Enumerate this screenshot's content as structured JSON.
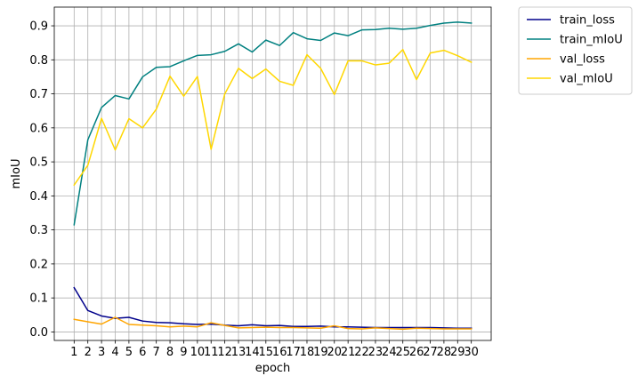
{
  "chart_data": {
    "type": "line",
    "xlabel": "epoch",
    "ylabel": "mIoU",
    "x": [
      1,
      2,
      3,
      4,
      5,
      6,
      7,
      8,
      9,
      10,
      11,
      12,
      13,
      14,
      15,
      16,
      17,
      18,
      19,
      20,
      21,
      22,
      23,
      24,
      25,
      26,
      27,
      28,
      29,
      30
    ],
    "yticks": [
      "0.0",
      "0.1",
      "0.2",
      "0.3",
      "0.4",
      "0.5",
      "0.6",
      "0.7",
      "0.8",
      "0.9"
    ],
    "ylim": [
      -0.025,
      0.955
    ],
    "grid": true,
    "legend_position": "outside-top-right",
    "series": [
      {
        "name": "train_loss",
        "color": "#00008b",
        "values": [
          0.13,
          0.063,
          0.047,
          0.04,
          0.043,
          0.032,
          0.028,
          0.027,
          0.024,
          0.022,
          0.023,
          0.02,
          0.018,
          0.021,
          0.018,
          0.019,
          0.016,
          0.016,
          0.017,
          0.015,
          0.015,
          0.014,
          0.013,
          0.013,
          0.013,
          0.013,
          0.013,
          0.012,
          0.011,
          0.011
        ]
      },
      {
        "name": "train_mIoU",
        "color": "#008080",
        "values": [
          0.315,
          0.565,
          0.66,
          0.695,
          0.685,
          0.75,
          0.778,
          0.78,
          0.797,
          0.813,
          0.815,
          0.825,
          0.847,
          0.823,
          0.858,
          0.842,
          0.88,
          0.862,
          0.857,
          0.879,
          0.871,
          0.888,
          0.889,
          0.893,
          0.89,
          0.893,
          0.901,
          0.908,
          0.911,
          0.908
        ]
      },
      {
        "name": "val_loss",
        "color": "#ffa500",
        "values": [
          0.037,
          0.03,
          0.023,
          0.043,
          0.022,
          0.02,
          0.018,
          0.015,
          0.017,
          0.015,
          0.027,
          0.019,
          0.012,
          0.013,
          0.014,
          0.013,
          0.013,
          0.012,
          0.011,
          0.018,
          0.01,
          0.009,
          0.012,
          0.01,
          0.008,
          0.011,
          0.01,
          0.009,
          0.009,
          0.009
        ]
      },
      {
        "name": "val_mIoU",
        "color": "#ffd700",
        "values": [
          0.432,
          0.49,
          0.628,
          0.535,
          0.627,
          0.6,
          0.655,
          0.752,
          0.693,
          0.751,
          0.537,
          0.7,
          0.775,
          0.745,
          0.773,
          0.737,
          0.725,
          0.815,
          0.775,
          0.698,
          0.797,
          0.797,
          0.785,
          0.79,
          0.83,
          0.742,
          0.82,
          0.828,
          0.812,
          0.793
        ]
      }
    ]
  }
}
